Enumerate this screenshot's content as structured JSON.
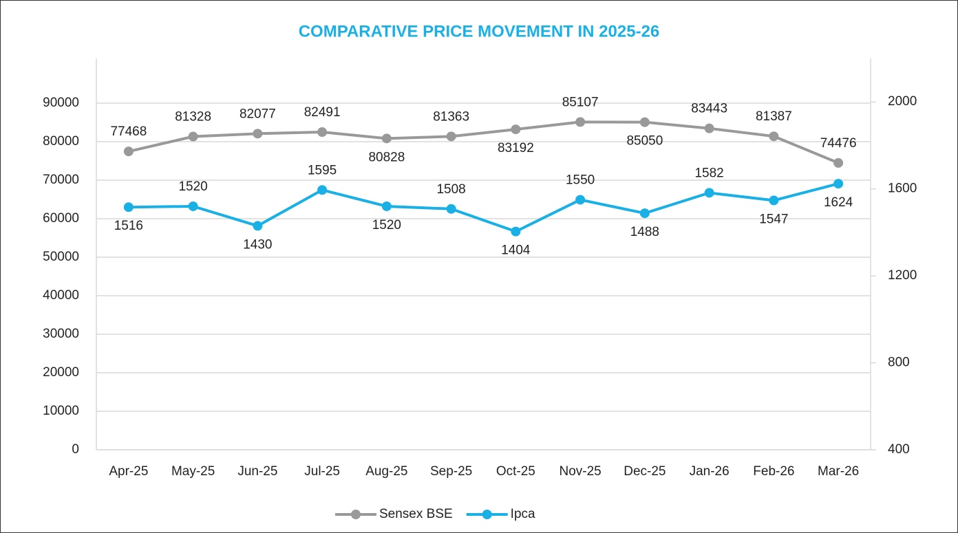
{
  "chart_data": {
    "type": "line",
    "title": "COMPARATIVE PRICE MOVEMENT IN 2025-26",
    "categories": [
      "Apr-25",
      "May-25",
      "Jun-25",
      "Jul-25",
      "Aug-25",
      "Sep-25",
      "Oct-25",
      "Nov-25",
      "Dec-25",
      "Jan-26",
      "Feb-26",
      "Mar-26"
    ],
    "series": [
      {
        "name": "Sensex BSE",
        "color": "#999999",
        "values": [
          77468,
          81328,
          82077,
          82491,
          80828,
          81363,
          83192,
          85107,
          85050,
          83443,
          81387,
          74476
        ]
      },
      {
        "name": "Ipca",
        "color": "#19b0e6",
        "axis": "y2",
        "values": [
          1516,
          1520,
          1430,
          1595,
          1520,
          1508,
          1404,
          1550,
          1488,
          1582,
          1547,
          1624
        ]
      }
    ],
    "ylim": [
      0,
      101600
    ],
    "yticks": [
      0,
      10000,
      20000,
      30000,
      40000,
      50000,
      60000,
      70000,
      80000,
      90000
    ],
    "y2lim": [
      400,
      2200
    ],
    "y2ticks": [
      400,
      800,
      1200,
      1600,
      2000
    ],
    "grid": true,
    "legend": "bottom"
  }
}
